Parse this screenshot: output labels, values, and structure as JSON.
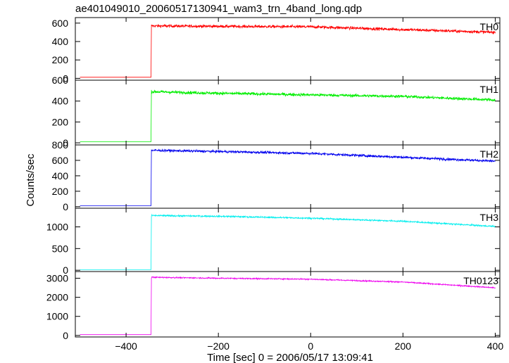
{
  "chart_data": {
    "type": "line",
    "title": "ae401049010_20060517130941_wam3_trn_4band_long.qdp",
    "xlabel": "Time [sec] 0 = 2006/05/17 13:09:41",
    "ylabel": "Counts/sec",
    "xlim": [
      -510,
      410
    ],
    "x_ticks": [
      -400,
      -200,
      0,
      200,
      400
    ],
    "x_tick_labels": [
      "−400",
      "−200",
      "0",
      "200",
      "400"
    ],
    "onset_time": -345,
    "end_time": 400,
    "start_time": -500,
    "grid": false,
    "panels": [
      {
        "name": "TH0",
        "color": "#ff0000",
        "ylim": [
          -20,
          660
        ],
        "y_ticks": [
          0,
          200,
          400,
          600
        ],
        "pre_level": 12,
        "samples": [
          [
            -345,
            570
          ],
          [
            -200,
            565
          ],
          [
            0,
            560
          ],
          [
            200,
            530
          ],
          [
            400,
            500
          ]
        ],
        "noise": 28
      },
      {
        "name": "TH1",
        "color": "#00ee00",
        "ylim": [
          -20,
          600
        ],
        "y_ticks": [
          0,
          200,
          400,
          600
        ],
        "pre_level": 10,
        "samples": [
          [
            -345,
            490
          ],
          [
            -200,
            475
          ],
          [
            0,
            460
          ],
          [
            200,
            445
          ],
          [
            400,
            410
          ]
        ],
        "noise": 25
      },
      {
        "name": "TH2",
        "color": "#0000ee",
        "ylim": [
          -20,
          800
        ],
        "y_ticks": [
          0,
          200,
          400,
          600,
          800
        ],
        "pre_level": 12,
        "samples": [
          [
            -345,
            730
          ],
          [
            -200,
            715
          ],
          [
            0,
            690
          ],
          [
            200,
            640
          ],
          [
            400,
            590
          ]
        ],
        "noise": 28
      },
      {
        "name": "TH3",
        "color": "#00eeee",
        "ylim": [
          -30,
          1430
        ],
        "y_ticks": [
          0,
          500,
          1000
        ],
        "pre_level": 12,
        "samples": [
          [
            -345,
            1260
          ],
          [
            -200,
            1245
          ],
          [
            0,
            1200
          ],
          [
            200,
            1130
          ],
          [
            400,
            1010
          ]
        ],
        "noise": 30
      },
      {
        "name": "TH0123",
        "color": "#ee00ee",
        "ylim": [
          -80,
          3350
        ],
        "y_ticks": [
          0,
          1000,
          2000,
          3000
        ],
        "pre_level": 40,
        "samples": [
          [
            -345,
            3050
          ],
          [
            -200,
            3000
          ],
          [
            0,
            2950
          ],
          [
            200,
            2800
          ],
          [
            400,
            2500
          ]
        ],
        "noise": 55
      }
    ]
  }
}
